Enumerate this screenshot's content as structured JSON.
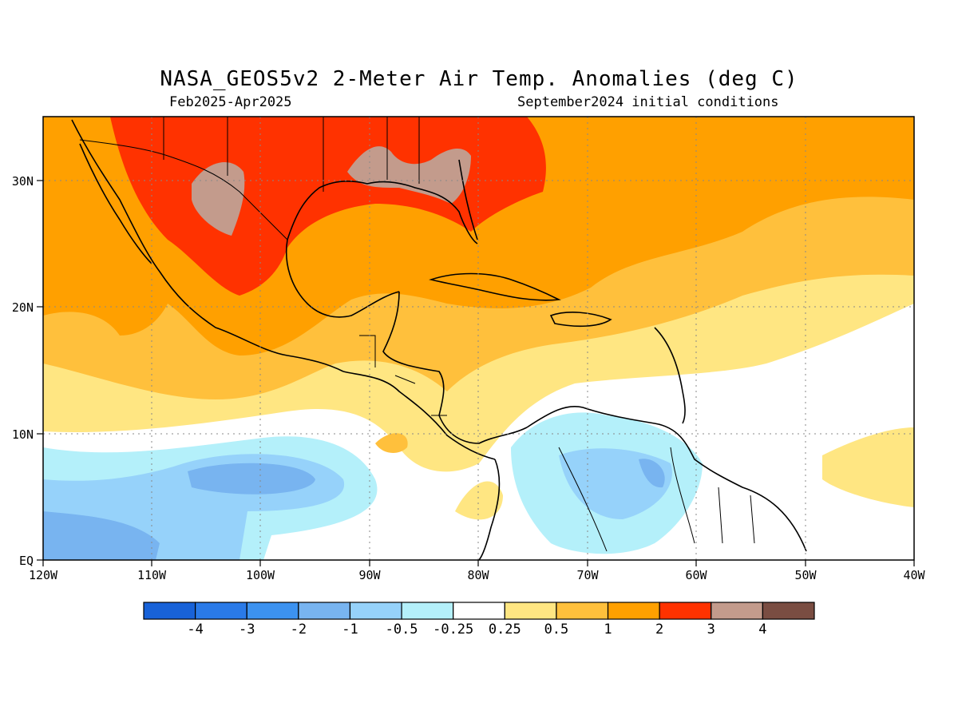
{
  "title": "NASA_GEOS5v2 2-Meter Air Temp. Anomalies (deg C)",
  "subtitle_left": "Feb2025-Apr2025",
  "subtitle_right": "September2024 initial conditions",
  "map": {
    "lon_range": [
      -120,
      -40
    ],
    "lat_range": [
      0,
      35
    ],
    "grid": "dotted",
    "x_ticks": [
      "120W",
      "110W",
      "100W",
      "90W",
      "80W",
      "70W",
      "60W",
      "50W",
      "40W"
    ],
    "y_ticks": [
      "EQ",
      "10N",
      "20N",
      "30N"
    ]
  },
  "colorbar": {
    "colors": [
      "#1862d8",
      "#2a7ae8",
      "#3c92f0",
      "#78b4f0",
      "#96d2fa",
      "#b4f0fa",
      "#ffffff",
      "#ffe682",
      "#ffc03c",
      "#ffa000",
      "#ff3200",
      "#c39b8c",
      "#7a4d42"
    ],
    "labels": [
      "-4",
      "-3",
      "-2",
      "-1",
      "-0.5",
      "-0.25",
      "0.25",
      "0.5",
      "1",
      "2",
      "3",
      "4"
    ]
  }
}
